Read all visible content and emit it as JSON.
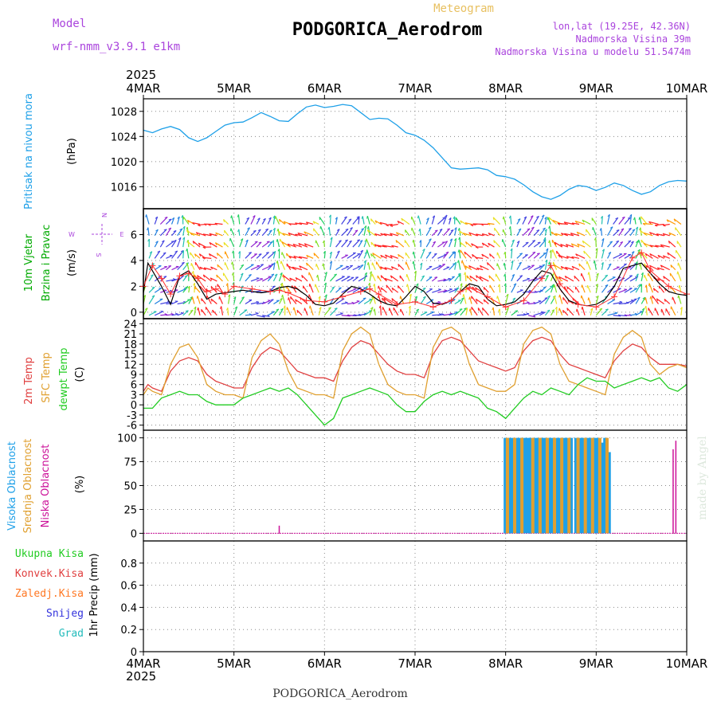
{
  "header": {
    "model_label": "Model",
    "model_name": "wrf-nmm_v3.9.1 e1km",
    "meteogram_label": "Meteogram",
    "station_title": "PODGORICA_Aerodrom",
    "coords": "lon,lat (19.25E, 42.36N)",
    "elevation": "Nadmorska Visina 39m",
    "model_elevation": "Nadmorska Visina u modelu 51.5474m",
    "year_top": "2025",
    "year_bottom": "2025",
    "footer_title": "PODGORICA_Aerodrom",
    "credit": "made by Angel"
  },
  "colors": {
    "pressure": "#1ea0e8",
    "wind_label": "#00aa00",
    "temp2m": "#e04040",
    "sfc": "#e0a030",
    "dewpt": "#22cc22",
    "high_cloud": "#1ea0e8",
    "mid_cloud": "#e0a030",
    "low_cloud": "#cc1199",
    "ukupna": "#22cc22",
    "konvek": "#e04040",
    "zaledj": "#ff7722",
    "snijeg": "#3333dd",
    "grad": "#22bbbb",
    "purple": "#aa44dd",
    "gold": "#e8c060"
  },
  "chart_data": [
    {
      "type": "line",
      "panel": "pressure",
      "ylabel_lines": [
        "Pritisak na nivou mora",
        "(hPa)"
      ],
      "yticks": [
        1016,
        1020,
        1024,
        1028
      ],
      "ylim": [
        1012.5,
        1030
      ],
      "x_categories": [
        "4MAR",
        "5MAR",
        "6MAR",
        "7MAR",
        "8MAR",
        "9MAR",
        "10MAR"
      ],
      "xlim": [
        0,
        6
      ],
      "series": [
        {
          "x": [
            0,
            0.1,
            0.2,
            0.3,
            0.4,
            0.5,
            0.6,
            0.7,
            0.8,
            0.9,
            1.0,
            1.1,
            1.2,
            1.3,
            1.4,
            1.5,
            1.6,
            1.7,
            1.8,
            1.9,
            2.0,
            2.1,
            2.2,
            2.3,
            2.4,
            2.5,
            2.6,
            2.7,
            2.8,
            2.9,
            3.0,
            3.1,
            3.2,
            3.3,
            3.4,
            3.5,
            3.6,
            3.7,
            3.8,
            3.9,
            4.0,
            4.1,
            4.2,
            4.3,
            4.4,
            4.5,
            4.6,
            4.7,
            4.8,
            4.9,
            5.0,
            5.1,
            5.2,
            5.3,
            5.4,
            5.5,
            5.6,
            5.7,
            5.8,
            5.9,
            6.0
          ],
          "values": [
            1025,
            1024.6,
            1025.2,
            1025.6,
            1025.1,
            1023.8,
            1023.2,
            1023.8,
            1024.8,
            1025.8,
            1026.2,
            1026.3,
            1027.0,
            1027.8,
            1027.2,
            1026.5,
            1026.4,
            1027.6,
            1028.7,
            1029.0,
            1028.6,
            1028.8,
            1029.1,
            1028.9,
            1027.8,
            1026.7,
            1026.9,
            1026.8,
            1025.8,
            1024.6,
            1024.2,
            1023.4,
            1022.2,
            1020.6,
            1019.0,
            1018.8,
            1018.9,
            1019.0,
            1018.7,
            1017.8,
            1017.6,
            1017.2,
            1016.3,
            1015.2,
            1014.4,
            1014.0,
            1014.6,
            1015.6,
            1016.2,
            1016.0,
            1015.4,
            1015.9,
            1016.6,
            1016.2,
            1015.4,
            1014.8,
            1015.2,
            1016.2,
            1016.8,
            1017.0,
            1016.9
          ]
        }
      ]
    },
    {
      "type": "line",
      "panel": "wind",
      "ylabel_lines": [
        "10m Vjetar",
        "Brzina i Pravac",
        "(m/s)"
      ],
      "compass": [
        "N",
        "W",
        "E",
        "S"
      ],
      "yticks": [
        0,
        2,
        4,
        6
      ],
      "ylim": [
        -0.5,
        8
      ],
      "xlim": [
        0,
        6
      ],
      "series": [
        {
          "name": "speed",
          "x": [
            0,
            0.05,
            0.1,
            0.15,
            0.2,
            0.3,
            0.4,
            0.5,
            0.6,
            0.7,
            0.8,
            0.9,
            1.0,
            1.1,
            1.2,
            1.3,
            1.4,
            1.5,
            1.6,
            1.7,
            1.8,
            1.9,
            2.0,
            2.1,
            2.2,
            2.3,
            2.4,
            2.5,
            2.6,
            2.7,
            2.8,
            2.9,
            3.0,
            3.1,
            3.2,
            3.3,
            3.4,
            3.5,
            3.6,
            3.7,
            3.8,
            3.9,
            4.0,
            4.1,
            4.2,
            4.3,
            4.4,
            4.5,
            4.6,
            4.7,
            4.8,
            4.9,
            5.0,
            5.1,
            5.2,
            5.3,
            5.4,
            5.5,
            5.6,
            5.7,
            5.8,
            5.9,
            6.0
          ],
          "values": [
            1.5,
            3.8,
            3.2,
            2.6,
            2.0,
            0.6,
            2.8,
            3.2,
            2.2,
            1.0,
            1.4,
            1.5,
            1.6,
            1.7,
            1.6,
            1.5,
            1.6,
            1.9,
            2.0,
            1.8,
            1.3,
            0.6,
            0.5,
            0.7,
            1.4,
            2.0,
            1.8,
            1.4,
            0.9,
            0.6,
            0.5,
            1.2,
            2.0,
            1.6,
            0.7,
            0.6,
            0.9,
            1.6,
            2.2,
            2.0,
            1.0,
            0.5,
            0.6,
            0.8,
            1.4,
            2.4,
            3.2,
            3.0,
            1.8,
            0.9,
            0.6,
            0.5,
            0.6,
            1.0,
            2.0,
            3.4,
            3.6,
            3.8,
            3.0,
            2.2,
            1.6,
            1.4,
            1.3
          ]
        },
        {
          "name": "gust",
          "x": [
            0,
            0.1,
            0.2,
            0.3,
            0.4,
            0.5,
            0.6,
            0.7,
            0.8,
            0.9,
            1.0,
            1.2,
            1.4,
            1.5,
            1.6,
            1.8,
            2.0,
            2.2,
            2.4,
            2.5,
            2.6,
            2.8,
            3.0,
            3.2,
            3.4,
            3.5,
            3.6,
            3.8,
            4.0,
            4.2,
            4.4,
            4.5,
            4.6,
            4.8,
            5.0,
            5.2,
            5.4,
            5.5,
            5.6,
            5.8,
            6.0
          ],
          "values": [
            2.0,
            3.6,
            2.6,
            1.4,
            2.8,
            3.0,
            2.6,
            1.6,
            1.8,
            1.4,
            2.0,
            1.8,
            1.6,
            1.7,
            1.5,
            0.9,
            0.8,
            1.2,
            1.6,
            1.8,
            1.4,
            0.6,
            0.8,
            0.4,
            0.9,
            1.6,
            1.9,
            1.2,
            0.4,
            0.9,
            2.6,
            3.6,
            2.2,
            0.6,
            0.4,
            1.2,
            4.2,
            4.6,
            3.2,
            2.0,
            1.4
          ]
        }
      ]
    },
    {
      "type": "line",
      "panel": "temperature",
      "ylabel_lines": [
        "2m Temp",
        "SFC Temp",
        "dewpt Temp",
        "(C)"
      ],
      "yticks": [
        -6,
        -3,
        0,
        3,
        6,
        9,
        12,
        15,
        18,
        21,
        24
      ],
      "ylim": [
        -7.5,
        25.5
      ],
      "xlim": [
        0,
        6
      ],
      "series": [
        {
          "name": "2m Temp",
          "x": [
            0,
            0.05,
            0.1,
            0.2,
            0.3,
            0.4,
            0.5,
            0.6,
            0.7,
            0.8,
            0.9,
            1.0,
            1.1,
            1.2,
            1.3,
            1.4,
            1.5,
            1.6,
            1.7,
            1.8,
            1.9,
            2.0,
            2.1,
            2.2,
            2.3,
            2.4,
            2.5,
            2.6,
            2.7,
            2.8,
            2.9,
            3.0,
            3.1,
            3.2,
            3.3,
            3.4,
            3.5,
            3.6,
            3.7,
            3.8,
            3.9,
            4.0,
            4.1,
            4.2,
            4.3,
            4.4,
            4.5,
            4.6,
            4.7,
            4.8,
            4.9,
            5.0,
            5.1,
            5.2,
            5.3,
            5.4,
            5.5,
            5.6,
            5.7,
            5.8,
            5.9,
            6.0
          ],
          "values": [
            4,
            6,
            5,
            4,
            10,
            13,
            14,
            13,
            9,
            7,
            6,
            5,
            5,
            11,
            15,
            17,
            16,
            13,
            10,
            9,
            8,
            8,
            7,
            13,
            17,
            19,
            18,
            15,
            12,
            10,
            9,
            9,
            8,
            15,
            19,
            20,
            19,
            16,
            13,
            12,
            11,
            10,
            11,
            16,
            19,
            20,
            19,
            15,
            12,
            11,
            10,
            9,
            8,
            13,
            16,
            18,
            17,
            14,
            12,
            12,
            12,
            11.5
          ]
        },
        {
          "name": "SFC Temp",
          "x": [
            0,
            0.05,
            0.1,
            0.2,
            0.3,
            0.4,
            0.5,
            0.6,
            0.7,
            0.8,
            0.9,
            1.0,
            1.1,
            1.2,
            1.3,
            1.4,
            1.5,
            1.6,
            1.7,
            1.8,
            1.9,
            2.0,
            2.1,
            2.2,
            2.3,
            2.4,
            2.5,
            2.6,
            2.7,
            2.8,
            2.9,
            3.0,
            3.1,
            3.2,
            3.3,
            3.4,
            3.5,
            3.6,
            3.7,
            3.8,
            3.9,
            4.0,
            4.1,
            4.2,
            4.3,
            4.4,
            4.5,
            4.6,
            4.7,
            4.8,
            4.9,
            5.0,
            5.1,
            5.2,
            5.3,
            5.4,
            5.5,
            5.6,
            5.7,
            5.8,
            5.9,
            6.0
          ],
          "values": [
            3,
            5,
            4,
            3,
            12,
            17,
            18,
            14,
            6,
            4,
            3,
            3,
            2,
            14,
            19,
            21,
            18,
            10,
            5,
            4,
            3,
            3,
            2,
            16,
            21,
            23,
            21,
            12,
            6,
            4,
            3,
            3,
            2,
            17,
            22,
            23,
            21,
            12,
            6,
            5,
            4,
            4,
            6,
            18,
            22,
            23,
            21,
            12,
            7,
            6,
            5,
            4,
            3,
            15,
            20,
            22,
            20,
            12,
            9,
            11,
            12,
            11
          ]
        },
        {
          "name": "dewpt Temp",
          "x": [
            0,
            0.1,
            0.2,
            0.3,
            0.4,
            0.5,
            0.6,
            0.7,
            0.8,
            0.9,
            1.0,
            1.1,
            1.2,
            1.3,
            1.4,
            1.5,
            1.6,
            1.7,
            1.8,
            1.9,
            2.0,
            2.1,
            2.2,
            2.3,
            2.4,
            2.5,
            2.6,
            2.7,
            2.8,
            2.9,
            3.0,
            3.1,
            3.2,
            3.3,
            3.4,
            3.5,
            3.6,
            3.7,
            3.8,
            3.9,
            4.0,
            4.1,
            4.2,
            4.3,
            4.4,
            4.5,
            4.6,
            4.7,
            4.8,
            4.9,
            5.0,
            5.1,
            5.2,
            5.3,
            5.4,
            5.5,
            5.6,
            5.7,
            5.8,
            5.9,
            6.0
          ],
          "values": [
            -1,
            -1,
            2,
            3,
            4,
            3,
            3,
            1,
            0,
            0,
            0,
            2,
            3,
            4,
            5,
            4,
            5,
            3,
            0,
            -3,
            -6,
            -4,
            2,
            3,
            4,
            5,
            4,
            3,
            0,
            -2,
            -2,
            1,
            3,
            4,
            3,
            4,
            3,
            2,
            -1,
            -2,
            -4,
            -1,
            2,
            4,
            3,
            5,
            4,
            3,
            6,
            8,
            7,
            7,
            5,
            6,
            7,
            8,
            7,
            8,
            5,
            4,
            6
          ]
        }
      ]
    },
    {
      "type": "bar",
      "panel": "clouds",
      "ylabel_lines": [
        "Visoka Oblacnost",
        "Srednja Oblacnost",
        "Niska Oblacnost",
        "(%)"
      ],
      "yticks": [
        0,
        25,
        50,
        75,
        100
      ],
      "ylim": [
        -8,
        108
      ],
      "xlim": [
        0,
        6
      ],
      "series": [
        {
          "name": "Visoka Oblacnost",
          "x": [
            4.0,
            4.04,
            4.08,
            4.12,
            4.16,
            4.2,
            4.24,
            4.28,
            4.32,
            4.36,
            4.4,
            4.44,
            4.48,
            4.52,
            4.56,
            4.6,
            4.64,
            4.68,
            4.72,
            4.78,
            4.82,
            4.86,
            4.9,
            4.94,
            4.98,
            5.02,
            5.06,
            5.1,
            5.14
          ],
          "values": [
            100,
            100,
            100,
            100,
            100,
            100,
            100,
            100,
            100,
            100,
            100,
            100,
            100,
            100,
            100,
            100,
            100,
            100,
            100,
            100,
            100,
            100,
            100,
            100,
            100,
            100,
            95,
            100,
            85
          ]
        },
        {
          "name": "Srednja Oblacnost",
          "x": [
            4.02,
            4.1,
            4.18,
            4.3,
            4.38,
            4.46,
            4.54,
            4.62,
            4.7,
            4.8,
            4.88,
            4.96,
            5.04,
            5.12
          ],
          "values": [
            100,
            100,
            100,
            100,
            100,
            100,
            100,
            100,
            100,
            100,
            100,
            100,
            100,
            100
          ]
        },
        {
          "name": "Niska Oblacnost",
          "x": [
            1.5,
            5.85,
            5.88
          ],
          "values": [
            8,
            88,
            97
          ]
        }
      ]
    },
    {
      "type": "line",
      "panel": "precipitation",
      "ylabel_lines": [
        "1hr Precip (mm)"
      ],
      "legend": [
        "Ukupna Kisa",
        "Konvek.Kisa",
        "Zaledj.Kisa",
        "Snijeg",
        "Grad"
      ],
      "yticks": [
        0,
        0.2,
        0.4,
        0.6,
        0.8
      ],
      "ytick_labels": [
        "0",
        "0.2",
        "0.4",
        "0.6",
        "0.8"
      ],
      "ylim": [
        0,
        1
      ],
      "xlim": [
        0,
        6
      ],
      "x_categories": [
        "4MAR",
        "5MAR",
        "6MAR",
        "7MAR",
        "8MAR",
        "9MAR",
        "10MAR"
      ],
      "series": [
        {
          "name": "Ukupna Kisa",
          "x": [
            0,
            6
          ],
          "values": [
            0,
            0
          ]
        }
      ]
    }
  ]
}
